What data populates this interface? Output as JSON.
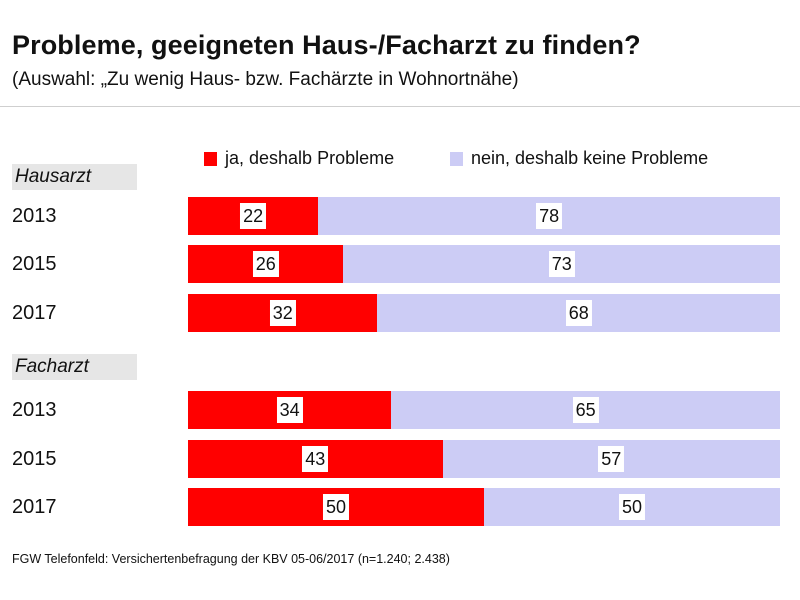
{
  "title": "Probleme, geeigneten Haus-/Facharzt zu finden?",
  "subtitle": "(Auswahl: „Zu wenig Haus- bzw. Fachärzte in Wohnortnähe)",
  "footer": "FGW Telefonfeld: Versichertenbefragung der KBV 05-06/2017 (n=1.240; 2.438)",
  "colors": {
    "ja": "#ff0000",
    "nein": "#ccccf5",
    "section_bg": "#e6e6e6"
  },
  "chart_data": {
    "type": "bar",
    "orientation": "horizontal",
    "stacked": true,
    "title": "Probleme, geeigneten Haus-/Facharzt zu finden?",
    "legend": [
      "ja, deshalb Probleme",
      "nein, deshalb keine Probleme"
    ],
    "legend_position": "top-right",
    "groups": [
      {
        "name": "Hausarzt",
        "categories": [
          "2013",
          "2015",
          "2017"
        ],
        "series": [
          {
            "name": "ja, deshalb Probleme",
            "values": [
              22,
              26,
              32
            ]
          },
          {
            "name": "nein, deshalb keine Probleme",
            "values": [
              78,
              73,
              68
            ]
          }
        ]
      },
      {
        "name": "Facharzt",
        "categories": [
          "2013",
          "2015",
          "2017"
        ],
        "series": [
          {
            "name": "ja, deshalb Probleme",
            "values": [
              34,
              43,
              50
            ]
          },
          {
            "name": "nein, deshalb keine Probleme",
            "values": [
              65,
              57,
              50
            ]
          }
        ]
      }
    ]
  }
}
